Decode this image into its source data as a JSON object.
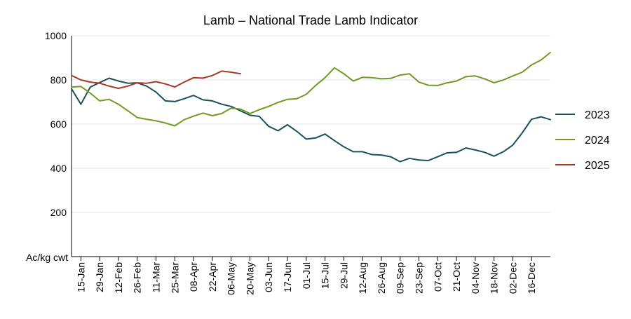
{
  "chart_data": {
    "type": "line",
    "title": "Lamb – National Trade Lamb Indicator",
    "ylabel": "Ac/kg cwt",
    "xlabel": "",
    "ylim": [
      0,
      1000
    ],
    "yticks": [
      200,
      400,
      600,
      800,
      1000
    ],
    "y_gridlines": true,
    "x_domain_week": [
      1,
      52
    ],
    "x_ticks": [
      {
        "label": "15-Jan",
        "week": 2
      },
      {
        "label": "29-Jan",
        "week": 4
      },
      {
        "label": "12-Feb",
        "week": 6
      },
      {
        "label": "26-Feb",
        "week": 8
      },
      {
        "label": "11-Mar",
        "week": 10
      },
      {
        "label": "25-Mar",
        "week": 12
      },
      {
        "label": "08-Apr",
        "week": 14
      },
      {
        "label": "22-Apr",
        "week": 16
      },
      {
        "label": "06-May",
        "week": 18
      },
      {
        "label": "20-May",
        "week": 20
      },
      {
        "label": "03-Jun",
        "week": 22
      },
      {
        "label": "17-Jun",
        "week": 24
      },
      {
        "label": "01-Jul",
        "week": 26
      },
      {
        "label": "15-Jul",
        "week": 28
      },
      {
        "label": "29-Jul",
        "week": 30
      },
      {
        "label": "12-Aug",
        "week": 32
      },
      {
        "label": "26-Aug",
        "week": 34
      },
      {
        "label": "09-Sep",
        "week": 36
      },
      {
        "label": "23-Sep",
        "week": 38
      },
      {
        "label": "07-Oct",
        "week": 40
      },
      {
        "label": "21-Oct",
        "week": 42
      },
      {
        "label": "04-Nov",
        "week": 44
      },
      {
        "label": "18-Nov",
        "week": 46
      },
      {
        "label": "02-Dec",
        "week": 48
      },
      {
        "label": "16-Dec",
        "week": 50
      }
    ],
    "legend_position": "right",
    "series": [
      {
        "name": "2023",
        "color": "#1a5059",
        "start_week": 1,
        "values": [
          760,
          690,
          768,
          788,
          808,
          795,
          785,
          787,
          772,
          745,
          705,
          702,
          715,
          730,
          710,
          705,
          690,
          680,
          660,
          640,
          635,
          590,
          570,
          597,
          567,
          532,
          537,
          555,
          525,
          497,
          475,
          475,
          462,
          460,
          452,
          430,
          445,
          437,
          435,
          452,
          470,
          472,
          492,
          483,
          472,
          455,
          475,
          505,
          560,
          622,
          633,
          620
        ]
      },
      {
        "name": "2024",
        "color": "#6f9a24",
        "start_week": 1,
        "values": [
          768,
          770,
          740,
          705,
          712,
          690,
          660,
          630,
          622,
          615,
          605,
          592,
          620,
          636,
          650,
          638,
          648,
          672,
          668,
          648,
          665,
          680,
          698,
          712,
          715,
          735,
          775,
          810,
          855,
          828,
          795,
          812,
          810,
          805,
          807,
          822,
          828,
          790,
          776,
          775,
          787,
          795,
          815,
          818,
          805,
          787,
          800,
          818,
          835,
          868,
          890,
          924
        ]
      },
      {
        "name": "2025",
        "color": "#a33a25",
        "start_week": 1,
        "values": [
          820,
          800,
          790,
          785,
          772,
          762,
          772,
          787,
          785,
          792,
          782,
          768,
          790,
          810,
          808,
          820,
          840,
          835,
          828
        ]
      }
    ]
  }
}
